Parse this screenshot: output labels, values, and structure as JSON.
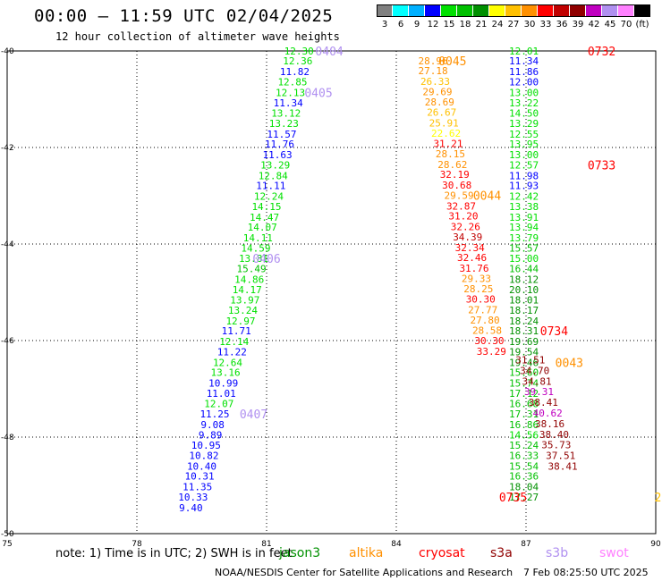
{
  "header": {
    "title": "00:00 — 11:59 UTC 02/04/2025",
    "subtitle": "12 hour collection of altimeter wave heights"
  },
  "scale": {
    "colors": [
      "#808080",
      "#00ffff",
      "#00b0ff",
      "#0000ff",
      "#00e000",
      "#00c000",
      "#009000",
      "#ffff00",
      "#ffc000",
      "#ff9000",
      "#ff0000",
      "#c00000",
      "#900000",
      "#c000c0",
      "#b090f0",
      "#ff80ff",
      "#000000"
    ],
    "labels": [
      "3",
      "6",
      "9",
      "12",
      "15",
      "18",
      "21",
      "24",
      "27",
      "30",
      "33",
      "36",
      "39",
      "42",
      "45",
      "70",
      "(ft)"
    ]
  },
  "footer": {
    "note": "note: 1) Time is in UTC; 2) SWH is in feet",
    "satellites": [
      {
        "name": "jason3",
        "color": "#009000"
      },
      {
        "name": "altika",
        "color": "#ff9000"
      },
      {
        "name": "cryosat",
        "color": "#ff0000"
      },
      {
        "name": "s3a",
        "color": "#900000"
      },
      {
        "name": "s3b",
        "color": "#b090f0"
      },
      {
        "name": "swot",
        "color": "#ff80ff"
      }
    ],
    "credit": "NOAA/NESDIS Center for Satellite Applications and Research",
    "stamp": "7 Feb 08:25:50 UTC 2025"
  },
  "chart_data": {
    "type": "scatter",
    "x_label_values": [
      75,
      78,
      81,
      84,
      87,
      90
    ],
    "y_label_values": [
      -40,
      -42,
      -44,
      -46,
      -48,
      -50
    ],
    "xlim": [
      75,
      90
    ],
    "ylim": [
      -50,
      -40
    ],
    "grid": true,
    "series": [
      {
        "name": "pass-0404-0407",
        "points": [
          {
            "x": 81.75,
            "y": -40.0,
            "v": "12.30",
            "c": "#00e000"
          },
          {
            "x": 81.72,
            "y": -40.2,
            "v": "12.36",
            "c": "#00e000"
          },
          {
            "x": 81.65,
            "y": -40.43,
            "v": "11.82",
            "c": "#0000ff"
          },
          {
            "x": 81.6,
            "y": -40.64,
            "v": "12.85",
            "c": "#00e000"
          },
          {
            "x": 81.55,
            "y": -40.86,
            "v": "12.13",
            "c": "#00e000"
          },
          {
            "x": 81.5,
            "y": -41.07,
            "v": "11.34",
            "c": "#0000ff"
          },
          {
            "x": 81.45,
            "y": -41.29,
            "v": "13.12",
            "c": "#00e000"
          },
          {
            "x": 81.4,
            "y": -41.5,
            "v": "13.23",
            "c": "#00e000"
          },
          {
            "x": 81.35,
            "y": -41.72,
            "v": "11.57",
            "c": "#0000ff"
          },
          {
            "x": 81.3,
            "y": -41.93,
            "v": "11.76",
            "c": "#0000ff"
          },
          {
            "x": 81.25,
            "y": -42.15,
            "v": "11.63",
            "c": "#0000ff"
          },
          {
            "x": 81.2,
            "y": -42.36,
            "v": "13.29",
            "c": "#00e000"
          },
          {
            "x": 81.15,
            "y": -42.58,
            "v": "12.84",
            "c": "#00e000"
          },
          {
            "x": 81.1,
            "y": -42.79,
            "v": "11.11",
            "c": "#0000ff"
          },
          {
            "x": 81.05,
            "y": -43.01,
            "v": "12.24",
            "c": "#00e000"
          },
          {
            "x": 81.0,
            "y": -43.22,
            "v": "14.15",
            "c": "#00e000"
          },
          {
            "x": 80.95,
            "y": -43.44,
            "v": "14.47",
            "c": "#00e000"
          },
          {
            "x": 80.9,
            "y": -43.65,
            "v": "14.07",
            "c": "#00e000"
          },
          {
            "x": 80.8,
            "y": -43.87,
            "v": "14.11",
            "c": "#00e000"
          },
          {
            "x": 80.75,
            "y": -44.08,
            "v": "14.59",
            "c": "#00e000"
          },
          {
            "x": 80.7,
            "y": -44.3,
            "v": "13.81",
            "c": "#00e000"
          },
          {
            "x": 80.65,
            "y": -44.51,
            "v": "15.49",
            "c": "#00c000"
          },
          {
            "x": 80.6,
            "y": -44.73,
            "v": "14.86",
            "c": "#00e000"
          },
          {
            "x": 80.55,
            "y": -44.94,
            "v": "14.17",
            "c": "#00e000"
          },
          {
            "x": 80.5,
            "y": -45.16,
            "v": "13.97",
            "c": "#00e000"
          },
          {
            "x": 80.45,
            "y": -45.37,
            "v": "13.24",
            "c": "#00e000"
          },
          {
            "x": 80.4,
            "y": -45.59,
            "v": "12.97",
            "c": "#00e000"
          },
          {
            "x": 80.3,
            "y": -45.8,
            "v": "11.71",
            "c": "#0000ff"
          },
          {
            "x": 80.25,
            "y": -46.02,
            "v": "12.14",
            "c": "#00e000"
          },
          {
            "x": 80.2,
            "y": -46.23,
            "v": "11.22",
            "c": "#0000ff"
          },
          {
            "x": 80.1,
            "y": -46.45,
            "v": "12.64",
            "c": "#00e000"
          },
          {
            "x": 80.05,
            "y": -46.66,
            "v": "13.16",
            "c": "#00e000"
          },
          {
            "x": 80.0,
            "y": -46.88,
            "v": "10.99",
            "c": "#0000ff"
          },
          {
            "x": 79.95,
            "y": -47.09,
            "v": "11.01",
            "c": "#0000ff"
          },
          {
            "x": 79.9,
            "y": -47.31,
            "v": "12.07",
            "c": "#00e000"
          },
          {
            "x": 79.8,
            "y": -47.52,
            "v": "11.25",
            "c": "#0000ff"
          },
          {
            "x": 79.75,
            "y": -47.74,
            "v": "9.08",
            "c": "#0000ff"
          },
          {
            "x": 79.7,
            "y": -47.95,
            "v": "9.89",
            "c": "#0000ff"
          },
          {
            "x": 79.6,
            "y": -48.17,
            "v": "10.95",
            "c": "#0000ff"
          },
          {
            "x": 79.55,
            "y": -48.38,
            "v": "10.82",
            "c": "#0000ff"
          },
          {
            "x": 79.5,
            "y": -48.6,
            "v": "10.40",
            "c": "#0000ff"
          },
          {
            "x": 79.45,
            "y": -48.81,
            "v": "10.31",
            "c": "#0000ff"
          },
          {
            "x": 79.4,
            "y": -49.03,
            "v": "11.35",
            "c": "#0000ff"
          },
          {
            "x": 79.3,
            "y": -49.24,
            "v": "10.33",
            "c": "#0000ff"
          },
          {
            "x": 79.25,
            "y": -49.46,
            "v": "9.40",
            "c": "#0000ff"
          }
        ]
      },
      {
        "name": "pass-0045-0043",
        "points": [
          {
            "x": 84.85,
            "y": -40.2,
            "v": "28.96",
            "c": "#ff9000"
          },
          {
            "x": 84.85,
            "y": -40.41,
            "v": "27.18",
            "c": "#ff9000"
          },
          {
            "x": 84.9,
            "y": -40.63,
            "v": "26.33",
            "c": "#ffc000"
          },
          {
            "x": 84.95,
            "y": -40.84,
            "v": "29.69",
            "c": "#ff9000"
          },
          {
            "x": 85.0,
            "y": -41.06,
            "v": "28.69",
            "c": "#ff9000"
          },
          {
            "x": 85.05,
            "y": -41.27,
            "v": "26.67",
            "c": "#ffc000"
          },
          {
            "x": 85.1,
            "y": -41.49,
            "v": "25.91",
            "c": "#ffc000"
          },
          {
            "x": 85.15,
            "y": -41.7,
            "v": "22.62",
            "c": "#ffff00"
          },
          {
            "x": 85.2,
            "y": -41.92,
            "v": "31.21",
            "c": "#ff0000"
          },
          {
            "x": 85.25,
            "y": -42.13,
            "v": "28.15",
            "c": "#ff9000"
          },
          {
            "x": 85.3,
            "y": -42.35,
            "v": "28.62",
            "c": "#ff9000"
          },
          {
            "x": 85.35,
            "y": -42.56,
            "v": "32.19",
            "c": "#ff0000"
          },
          {
            "x": 85.4,
            "y": -42.78,
            "v": "30.68",
            "c": "#ff0000"
          },
          {
            "x": 85.45,
            "y": -42.99,
            "v": "29.59",
            "c": "#ff9000"
          },
          {
            "x": 85.5,
            "y": -43.21,
            "v": "32.87",
            "c": "#ff0000"
          },
          {
            "x": 85.55,
            "y": -43.42,
            "v": "31.20",
            "c": "#ff0000"
          },
          {
            "x": 85.6,
            "y": -43.64,
            "v": "32.26",
            "c": "#ff0000"
          },
          {
            "x": 85.65,
            "y": -43.85,
            "v": "34.39",
            "c": "#c00000"
          },
          {
            "x": 85.7,
            "y": -44.07,
            "v": "32.34",
            "c": "#ff0000"
          },
          {
            "x": 85.75,
            "y": -44.28,
            "v": "32.46",
            "c": "#ff0000"
          },
          {
            "x": 85.8,
            "y": -44.5,
            "v": "31.76",
            "c": "#ff0000"
          },
          {
            "x": 85.85,
            "y": -44.71,
            "v": "29.33",
            "c": "#ff9000"
          },
          {
            "x": 85.9,
            "y": -44.93,
            "v": "28.25",
            "c": "#ff9000"
          },
          {
            "x": 85.95,
            "y": -45.14,
            "v": "30.30",
            "c": "#ff0000"
          },
          {
            "x": 86.0,
            "y": -45.36,
            "v": "27.77",
            "c": "#ff9000"
          },
          {
            "x": 86.05,
            "y": -45.57,
            "v": "27.80",
            "c": "#ff9000"
          },
          {
            "x": 86.1,
            "y": -45.79,
            "v": "28.58",
            "c": "#ff9000"
          },
          {
            "x": 86.15,
            "y": -46.0,
            "v": "30.30",
            "c": "#ff0000"
          },
          {
            "x": 86.2,
            "y": -46.22,
            "v": "33.29",
            "c": "#ff0000"
          }
        ]
      },
      {
        "name": "pass-0732-0735",
        "points": [
          {
            "x": 86.95,
            "y": -40.0,
            "v": "12.01",
            "c": "#00e000"
          },
          {
            "x": 86.95,
            "y": -40.2,
            "v": "11.34",
            "c": "#0000ff"
          },
          {
            "x": 86.95,
            "y": -40.43,
            "v": "11.86",
            "c": "#0000ff"
          },
          {
            "x": 86.95,
            "y": -40.64,
            "v": "12.00",
            "c": "#0000ff"
          },
          {
            "x": 86.95,
            "y": -40.86,
            "v": "13.00",
            "c": "#00e000"
          },
          {
            "x": 86.95,
            "y": -41.07,
            "v": "13.22",
            "c": "#00e000"
          },
          {
            "x": 86.95,
            "y": -41.29,
            "v": "14.50",
            "c": "#00e000"
          },
          {
            "x": 86.95,
            "y": -41.5,
            "v": "13.29",
            "c": "#00e000"
          },
          {
            "x": 86.95,
            "y": -41.72,
            "v": "12.55",
            "c": "#00e000"
          },
          {
            "x": 86.95,
            "y": -41.93,
            "v": "13.95",
            "c": "#00e000"
          },
          {
            "x": 86.95,
            "y": -42.15,
            "v": "13.00",
            "c": "#00e000"
          },
          {
            "x": 86.95,
            "y": -42.36,
            "v": "12.57",
            "c": "#00e000"
          },
          {
            "x": 86.95,
            "y": -42.58,
            "v": "11.98",
            "c": "#0000ff"
          },
          {
            "x": 86.95,
            "y": -42.79,
            "v": "11.93",
            "c": "#0000ff"
          },
          {
            "x": 86.95,
            "y": -43.01,
            "v": "12.42",
            "c": "#00e000"
          },
          {
            "x": 86.95,
            "y": -43.22,
            "v": "13.38",
            "c": "#00e000"
          },
          {
            "x": 86.95,
            "y": -43.44,
            "v": "13.91",
            "c": "#00e000"
          },
          {
            "x": 86.95,
            "y": -43.65,
            "v": "13.94",
            "c": "#00e000"
          },
          {
            "x": 86.95,
            "y": -43.87,
            "v": "13.79",
            "c": "#00e000"
          },
          {
            "x": 86.95,
            "y": -44.08,
            "v": "15.57",
            "c": "#00c000"
          },
          {
            "x": 86.95,
            "y": -44.3,
            "v": "15.00",
            "c": "#00e000"
          },
          {
            "x": 86.95,
            "y": -44.51,
            "v": "16.44",
            "c": "#00c000"
          },
          {
            "x": 86.95,
            "y": -44.73,
            "v": "18.12",
            "c": "#009000"
          },
          {
            "x": 86.95,
            "y": -44.94,
            "v": "20.10",
            "c": "#009000"
          },
          {
            "x": 86.95,
            "y": -45.16,
            "v": "18.01",
            "c": "#009000"
          },
          {
            "x": 86.95,
            "y": -45.37,
            "v": "18.17",
            "c": "#009000"
          },
          {
            "x": 86.95,
            "y": -45.59,
            "v": "18.24",
            "c": "#009000"
          },
          {
            "x": 86.95,
            "y": -45.8,
            "v": "18.31",
            "c": "#009000"
          },
          {
            "x": 86.95,
            "y": -46.02,
            "v": "19.69",
            "c": "#009000"
          },
          {
            "x": 86.95,
            "y": -46.23,
            "v": "19.54",
            "c": "#009000"
          },
          {
            "x": 86.95,
            "y": -46.45,
            "v": "19.46",
            "c": "#009000"
          },
          {
            "x": 86.95,
            "y": -46.66,
            "v": "15.60",
            "c": "#00c000"
          },
          {
            "x": 86.95,
            "y": -46.88,
            "v": "15.74",
            "c": "#00c000"
          },
          {
            "x": 86.95,
            "y": -47.09,
            "v": "17.12",
            "c": "#00c000"
          },
          {
            "x": 86.95,
            "y": -47.31,
            "v": "16.68",
            "c": "#00c000"
          },
          {
            "x": 86.95,
            "y": -47.52,
            "v": "17.31",
            "c": "#00c000"
          },
          {
            "x": 86.95,
            "y": -47.74,
            "v": "16.86",
            "c": "#00c000"
          },
          {
            "x": 86.95,
            "y": -47.95,
            "v": "14.56",
            "c": "#00e000"
          },
          {
            "x": 86.95,
            "y": -48.17,
            "v": "15.24",
            "c": "#00c000"
          },
          {
            "x": 86.95,
            "y": -48.38,
            "v": "16.33",
            "c": "#00c000"
          },
          {
            "x": 86.95,
            "y": -48.6,
            "v": "15.54",
            "c": "#00c000"
          },
          {
            "x": 86.95,
            "y": -48.81,
            "v": "16.36",
            "c": "#00c000"
          },
          {
            "x": 86.95,
            "y": -49.03,
            "v": "18.04",
            "c": "#009000"
          },
          {
            "x": 86.95,
            "y": -49.24,
            "v": "17.27",
            "c": "#009000"
          }
        ]
      },
      {
        "name": "s3a-track",
        "points": [
          {
            "x": 87.1,
            "y": -46.4,
            "v": "31.51",
            "c": "#900000"
          },
          {
            "x": 87.2,
            "y": -46.62,
            "v": "34.70",
            "c": "#900000"
          },
          {
            "x": 87.25,
            "y": -46.84,
            "v": "34.81",
            "c": "#900000"
          },
          {
            "x": 87.3,
            "y": -47.06,
            "v": "39.31",
            "c": "#c000c0"
          },
          {
            "x": 87.4,
            "y": -47.28,
            "v": "38.41",
            "c": "#900000"
          },
          {
            "x": 87.5,
            "y": -47.5,
            "v": "40.62",
            "c": "#c000c0"
          },
          {
            "x": 87.55,
            "y": -47.72,
            "v": "38.16",
            "c": "#900000"
          },
          {
            "x": 87.65,
            "y": -47.94,
            "v": "38.40",
            "c": "#900000"
          },
          {
            "x": 87.7,
            "y": -48.16,
            "v": "35.73",
            "c": "#900000"
          },
          {
            "x": 87.8,
            "y": -48.38,
            "v": "37.51",
            "c": "#900000"
          },
          {
            "x": 87.85,
            "y": -48.6,
            "v": "38.41",
            "c": "#900000"
          }
        ]
      }
    ],
    "time_labels": [
      {
        "x": 82.45,
        "y": -40.0,
        "v": "0404",
        "c": "#b090f0"
      },
      {
        "x": 82.2,
        "y": -40.86,
        "v": "0405",
        "c": "#b090f0"
      },
      {
        "x": 81.0,
        "y": -44.3,
        "v": "0406",
        "c": "#b090f0"
      },
      {
        "x": 80.7,
        "y": -47.52,
        "v": "0407",
        "c": "#b090f0"
      },
      {
        "x": 85.3,
        "y": -40.2,
        "v": "0045",
        "c": "#ff9000"
      },
      {
        "x": 86.1,
        "y": -42.99,
        "v": "0044",
        "c": "#ff9000"
      },
      {
        "x": 88.0,
        "y": -46.45,
        "v": "0043",
        "c": "#ff9000"
      },
      {
        "x": 88.75,
        "y": -40.0,
        "v": "0732",
        "c": "#ff0000"
      },
      {
        "x": 88.75,
        "y": -42.36,
        "v": "0733",
        "c": "#ff0000"
      },
      {
        "x": 87.65,
        "y": -45.8,
        "v": "0734",
        "c": "#ff0000"
      },
      {
        "x": 86.7,
        "y": -49.24,
        "v": "0735",
        "c": "#ff0000"
      },
      {
        "x": 90.05,
        "y": -49.24,
        "v": "2",
        "c": "#ffc000"
      }
    ]
  }
}
